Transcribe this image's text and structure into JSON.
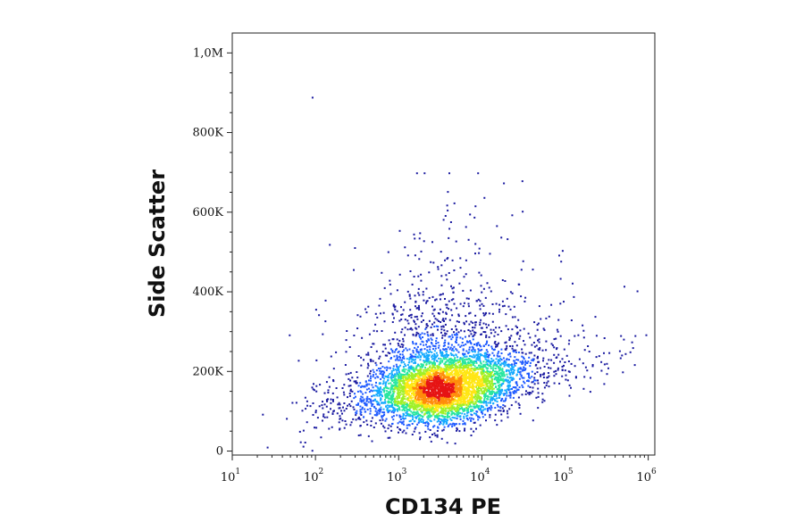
{
  "chart_data": {
    "type": "scatter",
    "plot_style": "density-colored flow cytometry dot plot",
    "xlabel": "CD134 PE",
    "ylabel": "Side Scatter",
    "x_scale": "log",
    "xlim": [
      10,
      1200000
    ],
    "ylim": [
      -10000,
      1050000
    ],
    "x_ticks": [
      {
        "base": "10",
        "exp": "1",
        "value": 10
      },
      {
        "base": "10",
        "exp": "2",
        "value": 100
      },
      {
        "base": "10",
        "exp": "3",
        "value": 1000
      },
      {
        "base": "10",
        "exp": "4",
        "value": 10000
      },
      {
        "base": "10",
        "exp": "5",
        "value": 100000
      },
      {
        "base": "10",
        "exp": "6",
        "value": 1000000
      }
    ],
    "y_ticks": [
      {
        "label": "0",
        "value": 0
      },
      {
        "label": "200K",
        "value": 200000
      },
      {
        "label": "400K",
        "value": 400000
      },
      {
        "label": "600K",
        "value": 600000
      },
      {
        "label": "800K",
        "value": 800000
      },
      {
        "label": "1,0M",
        "value": 1000000
      }
    ],
    "population": {
      "peak_x": 3500,
      "peak_y": 150000,
      "main_spread_x_decades": [
        2.4,
        5.0
      ],
      "main_spread_y": [
        60000,
        350000
      ],
      "outlier_examples": [
        [
          90,
          890000
        ],
        [
          30000,
          680000
        ],
        [
          1200000,
          310000
        ]
      ]
    },
    "density_colors": [
      "#1a1aa0",
      "#1e5aff",
      "#14aaff",
      "#28e6a0",
      "#a0f028",
      "#ffe614",
      "#ff8c0a",
      "#e61414"
    ]
  }
}
